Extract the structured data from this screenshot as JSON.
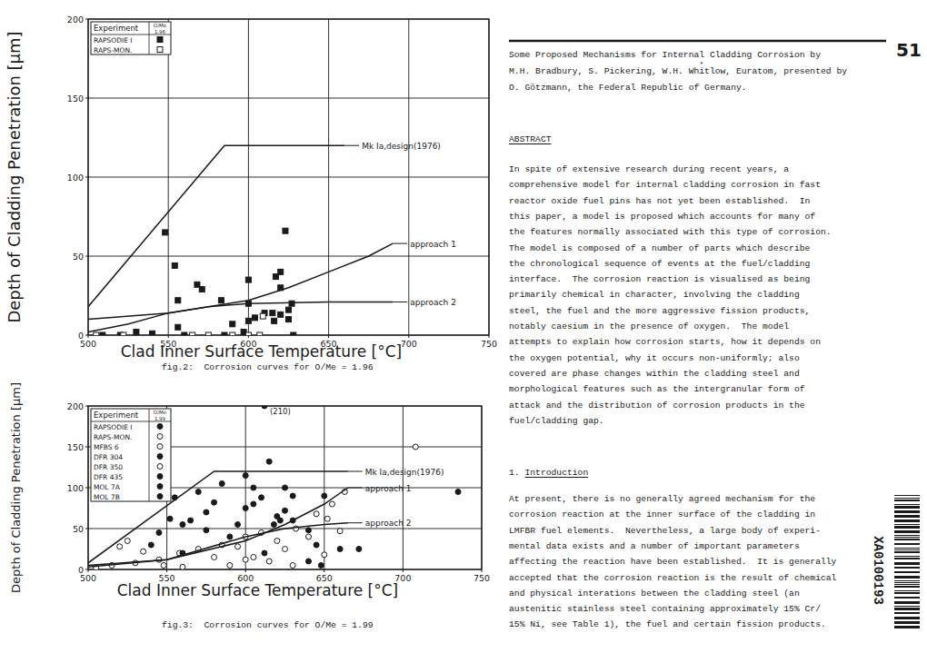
{
  "chart_data": [
    {
      "type": "scatter",
      "x_label": "Clad Inner Surface Temperature [°C]",
      "y_label": "Depth of Cladding Penetration [µm]",
      "caption": "fig.2:  Corrosion curves for O/Me = 1.96",
      "xlim": [
        500,
        750
      ],
      "ylim": [
        0,
        200
      ],
      "xticks": [
        500,
        550,
        600,
        650,
        700,
        750
      ],
      "yticks": [
        0,
        50,
        100,
        150,
        200
      ],
      "grid": true,
      "legend": "top-left",
      "legend_title": "Experiment",
      "legend_column_title": "O/Me",
      "legend_column_value": "1.96",
      "color": "#1a1a1a",
      "series": [
        {
          "name": "RAPSODIE I",
          "marker": "filled-square",
          "x": [
            509,
            520,
            530,
            540,
            548,
            554,
            556,
            556,
            560,
            568,
            571,
            583,
            585,
            590,
            597,
            600,
            600,
            600,
            604,
            610,
            615,
            616,
            617,
            620,
            620,
            620,
            623,
            625,
            625,
            627,
            628
          ],
          "values": [
            0,
            0,
            2,
            1,
            65,
            44,
            22,
            5,
            0,
            32,
            29,
            22,
            0,
            7,
            2,
            35,
            20,
            9,
            11,
            14,
            14,
            9,
            37,
            40,
            30,
            13,
            66,
            16,
            10,
            20,
            0
          ]
        },
        {
          "name": "RAPS-MON.",
          "marker": "open-square",
          "x": [
            505,
            522,
            565,
            575,
            590,
            600,
            607,
            609
          ],
          "values": [
            0,
            0,
            0,
            0,
            0,
            0,
            0,
            12
          ]
        },
        {
          "name": "Mk Ia,design(1976)",
          "type": "line",
          "line_style": "solid",
          "x": [
            500,
            585,
            660
          ],
          "values": [
            18,
            120,
            120
          ]
        },
        {
          "name": "approach 1",
          "type": "line",
          "line_style": "solid",
          "x": [
            500,
            550,
            600,
            625,
            650,
            675,
            690
          ],
          "values": [
            10,
            14,
            22,
            30,
            40,
            50,
            58
          ]
        },
        {
          "name": "approach 2",
          "type": "line",
          "line_style": "solid",
          "x": [
            500,
            525,
            550,
            575,
            600,
            650,
            690
          ],
          "values": [
            2,
            7,
            14,
            18,
            20,
            21,
            21
          ]
        }
      ]
    },
    {
      "type": "scatter",
      "x_label": "Clad Inner Surface Temperature [°C]",
      "y_label": "Depth of Cladding Penetration [µm]",
      "caption": "fig.3:  Corrosion curves for O/Me = 1.99",
      "xlim": [
        500,
        750
      ],
      "ylim": [
        0,
        200
      ],
      "xticks": [
        500,
        550,
        600,
        650,
        700,
        750
      ],
      "yticks": [
        0,
        50,
        100,
        150,
        200
      ],
      "grid": true,
      "legend": "top-left",
      "legend_title": "Experiment",
      "legend_column_title": "O/Me",
      "legend_column_value": "1.99",
      "color": "#1a1a1a",
      "annotations": [
        {
          "text": "(210)",
          "x": 612,
          "y": 200
        }
      ],
      "series": [
        {
          "name": "RAPSODIE I",
          "marker": "filled-circle",
          "x": [
            540,
            545,
            552,
            560,
            565,
            575,
            590,
            600,
            605,
            612,
            618,
            620,
            630,
            640,
            648,
            612
          ],
          "values": [
            30,
            45,
            62,
            55,
            60,
            70,
            40,
            75,
            80,
            20,
            55,
            65,
            60,
            10,
            5,
            200
          ]
        },
        {
          "name": "RAPS-MON.",
          "marker": "open-circle",
          "x": [
            505,
            515,
            530,
            545,
            558,
            570,
            585,
            600,
            610,
            620,
            632,
            645,
            655,
            663
          ],
          "values": [
            2,
            5,
            8,
            12,
            20,
            25,
            30,
            40,
            45,
            35,
            50,
            68,
            80,
            95
          ]
        },
        {
          "name": "MFBS 6",
          "marker": "open-circle",
          "x": [
            520,
            525,
            535,
            548,
            560,
            580,
            595,
            605,
            625,
            640,
            650
          ],
          "values": [
            28,
            35,
            22,
            5,
            3,
            15,
            28,
            15,
            25,
            40,
            18
          ]
        },
        {
          "name": "DFR 304",
          "marker": "filled-circle",
          "x": [
            560,
            575,
            595,
            610,
            625,
            630,
            640
          ],
          "values": [
            20,
            48,
            55,
            88,
            72,
            90,
            48
          ]
        },
        {
          "name": "DFR 350",
          "marker": "open-circle",
          "x": [
            590,
            600,
            615,
            630,
            652,
            660,
            708
          ],
          "values": [
            5,
            12,
            10,
            5,
            62,
            47,
            150
          ]
        },
        {
          "name": "DFR 435",
          "marker": "filled-circle",
          "x": [
            570,
            600,
            625,
            650,
            672
          ],
          "values": [
            95,
            115,
            100,
            90,
            25
          ]
        },
        {
          "name": "MOL 7A",
          "marker": "filled-circle",
          "x": [
            555,
            585,
            622,
            645
          ],
          "values": [
            88,
            105,
            60,
            30
          ]
        },
        {
          "name": "MOL 7B",
          "marker": "filled-circle",
          "x": [
            580,
            605,
            615,
            660,
            735
          ],
          "values": [
            82,
            100,
            132,
            25,
            95
          ]
        },
        {
          "name": "Mk Ia,design(1976)",
          "type": "line",
          "line_style": "solid",
          "x": [
            500,
            580,
            665
          ],
          "values": [
            8,
            120,
            120
          ]
        },
        {
          "name": "approach 1",
          "type": "line",
          "line_style": "solid",
          "x": [
            500,
            550,
            600,
            625,
            650,
            665
          ],
          "values": [
            5,
            12,
            35,
            55,
            80,
            100
          ]
        },
        {
          "name": "approach 2",
          "type": "line",
          "line_style": "solid",
          "x": [
            500,
            550,
            600,
            625,
            650,
            665
          ],
          "values": [
            3,
            12,
            40,
            50,
            55,
            57
          ]
        }
      ]
    }
  ],
  "document": {
    "page_number": "51",
    "header": {
      "title_lines": [
        "Some Proposed Mechanisms for Internal Cladding Corrosion by",
        "M.H. Bradbury, S. Pickering, W.H. Whitlow, Euratom, presented by",
        "O. Götzmann, the Federal Republic of Germany."
      ],
      "author_mark": "*"
    },
    "abstract": {
      "heading": "ABSTRACT",
      "lines": [
        "In spite of extensive research during recent years, a",
        "comprehensive model for internal cladding corrosion in fast",
        "reactor oxide fuel pins has not yet been established.  In",
        "this paper, a model is proposed which accounts for many of",
        "the features normally associated with this type of corrosion.",
        "The model is composed of a number of parts which describe",
        "the chronological sequence of events at the fuel/cladding",
        "interface.  The corrosion reaction is visualised as being",
        "primarily chemical in character, involving the cladding",
        "steel, the fuel and the more aggressive fission products,",
        "notably caesium in the presence of oxygen.  The model",
        "attempts to explain how corrosion starts, how it depends on",
        "the oxygen potential, why it occurs non-uniformly; also",
        "covered are phase changes within the cladding steel and",
        "morphological features such as the intergranular form of",
        "attack and the distribution of corrosion products in the",
        "fuel/cladding gap."
      ]
    },
    "introduction": {
      "heading": "1. Introduction",
      "lines": [
        "At present, there is no generally agreed mechanism for the",
        "corrosion reaction at the inner surface of the cladding in",
        "LMFBR fuel elements.  Nevertheless, a large body of experi-",
        "mental data exists and a number of important parameters",
        "affecting the reaction have been established.  It is generally",
        "accepted that the corrosion reaction is the result of chemical",
        "and physical interations between the cladding steel (an",
        "austenitic stainless steel containing approximately 15% Cr/",
        "15% Ni, see Table 1), the fuel and certain fission products."
      ]
    },
    "side_code": "XA0100193"
  }
}
